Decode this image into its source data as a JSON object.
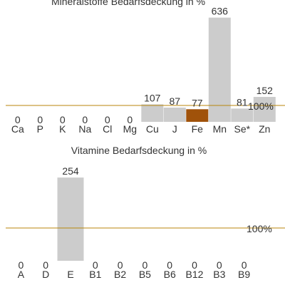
{
  "chart_data": [
    {
      "type": "bar",
      "title": "Mineralstoffe Bedarfsdeckung in %",
      "unit": "%",
      "reference_value": 100,
      "reference_label": "100%",
      "reference_color": "#b8860b",
      "bar_color": "#cccccc",
      "highlight_color": "#a0520a",
      "highlight_category": "Fe",
      "categories": [
        "Ca",
        "P",
        "K",
        "Na",
        "Cl",
        "Mg",
        "Cu",
        "J",
        "Fe",
        "Mn",
        "Se*",
        "Zn"
      ],
      "values": [
        0,
        0,
        0,
        0,
        0,
        0,
        107,
        87,
        77,
        636,
        81,
        152
      ]
    },
    {
      "type": "bar",
      "title": "Vitamine Bedarfsdeckung in %",
      "unit": "%",
      "reference_value": 100,
      "reference_label": "100%",
      "reference_color": "#b8860b",
      "bar_color": "#cccccc",
      "categories": [
        "A",
        "D",
        "E",
        "B1",
        "B2",
        "B5",
        "B6",
        "B12",
        "B3",
        "B9"
      ],
      "values": [
        0,
        0,
        254,
        0,
        0,
        0,
        0,
        0,
        0,
        0
      ]
    }
  ]
}
